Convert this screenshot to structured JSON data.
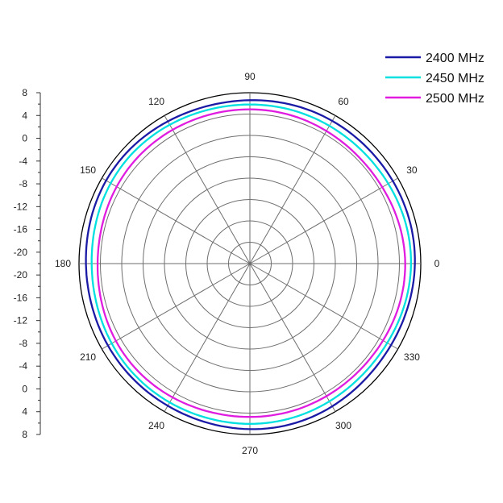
{
  "chart_data": {
    "type": "polar",
    "title": "",
    "angular_ticks": [
      "0",
      "30",
      "60",
      "90",
      "120",
      "150",
      "180",
      "210",
      "240",
      "270",
      "300",
      "330"
    ],
    "radial_axis_ticks": [
      "8",
      "4",
      "0",
      "-4",
      "-8",
      "-12",
      "-16",
      "-20",
      "-20",
      "-16",
      "-12",
      "-8",
      "-4",
      "0",
      "4",
      "8"
    ],
    "radial_range": [
      -24,
      8
    ],
    "grid": true,
    "legend_position": "top-right",
    "series": [
      {
        "name": "2400 MHz",
        "color": "#1a1aa6",
        "gain_dbi": 6.8,
        "ripple": 0.2
      },
      {
        "name": "2450 MHz",
        "color": "#00e0e0",
        "gain_dbi": 5.9,
        "ripple": 0.2
      },
      {
        "name": "2500 MHz",
        "color": "#e01ce0",
        "gain_dbi": 4.8,
        "ripple": 0.2
      }
    ]
  }
}
